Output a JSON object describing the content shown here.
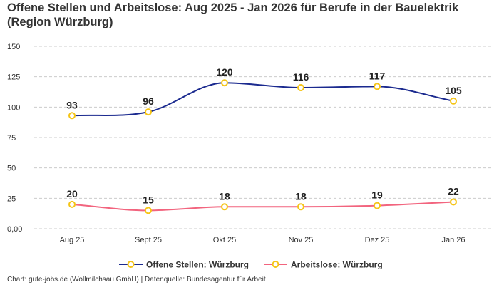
{
  "title": "Offene Stellen und Arbeitslose: Aug 2025 - Jan 2026 für Berufe in der Bauelektrik (Region Würzburg)",
  "source": "Chart: gute-jobs.de (Wollmilchsau GmbH) | Datenquelle: Bundesagentur für Arbeit",
  "chart_data": {
    "type": "line",
    "title": "Offene Stellen und Arbeitslose: Aug 2025 - Jan 2026 für Berufe in der Bauelektrik (Region Würzburg)",
    "categories": [
      "Aug 25",
      "Sept 25",
      "Okt 25",
      "Nov 25",
      "Dez 25",
      "Jan 26"
    ],
    "yticks": [
      0,
      25,
      50,
      75,
      100,
      125,
      150
    ],
    "ytick_labels": [
      "0,00",
      "25",
      "50",
      "75",
      "100",
      "125",
      "150"
    ],
    "ylim": [
      0,
      150
    ],
    "grid": true,
    "legend": "bottom",
    "series": [
      {
        "name": "Offene Stellen: Würzburg",
        "values": [
          93,
          96,
          120,
          116,
          117,
          105
        ],
        "color": "#1b2a8f"
      },
      {
        "name": "Arbeitslose: Würzburg",
        "values": [
          20,
          15,
          18,
          18,
          19,
          22
        ],
        "color": "#f2647e"
      }
    ],
    "marker_color": "#f5c518"
  }
}
